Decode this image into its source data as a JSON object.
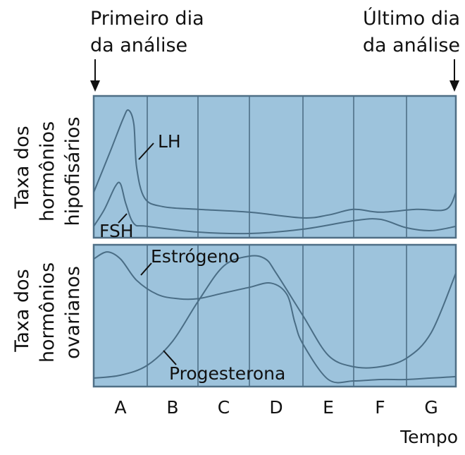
{
  "labels": {
    "first_day": [
      "Primeiro dia",
      "da análise"
    ],
    "last_day": [
      "Último dia",
      "da análise"
    ],
    "top_ylabel": [
      "Taxa dos",
      "hormônios",
      "hipofisários"
    ],
    "bottom_ylabel": [
      "Taxa dos",
      "hormônios",
      "ovarianos"
    ],
    "xlabel": "Tempo"
  },
  "chart_data": [
    {
      "type": "line",
      "title": "",
      "ylabel": "Taxa dos hormônios hipofisários",
      "xlabel": "Tempo",
      "categories": [
        "A",
        "B",
        "C",
        "D",
        "E",
        "F",
        "G"
      ],
      "series": [
        {
          "name": "LH",
          "x": [
            0,
            0.3,
            0.55,
            0.65,
            0.75,
            0.8,
            0.95,
            1.3,
            2,
            3,
            4,
            4.5,
            5,
            5.5,
            6.2,
            6.8,
            7
          ],
          "y": [
            0.32,
            0.6,
            0.84,
            0.9,
            0.8,
            0.5,
            0.28,
            0.22,
            0.2,
            0.18,
            0.14,
            0.16,
            0.2,
            0.18,
            0.2,
            0.2,
            0.32
          ]
        },
        {
          "name": "FSH",
          "x": [
            0,
            0.2,
            0.4,
            0.5,
            0.6,
            0.75,
            1,
            2,
            3,
            4,
            5,
            5.5,
            6,
            6.5,
            7
          ],
          "y": [
            0.08,
            0.2,
            0.36,
            0.38,
            0.24,
            0.1,
            0.08,
            0.04,
            0.03,
            0.06,
            0.12,
            0.13,
            0.07,
            0.05,
            0.08
          ]
        }
      ]
    },
    {
      "type": "line",
      "title": "",
      "ylabel": "Taxa dos hormônios ovarianos",
      "xlabel": "Tempo",
      "categories": [
        "A",
        "B",
        "C",
        "D",
        "E",
        "F",
        "G"
      ],
      "series": [
        {
          "name": "Estrógeno",
          "x": [
            0,
            0.25,
            0.5,
            0.8,
            1.2,
            1.6,
            2,
            2.5,
            3,
            3.4,
            3.7,
            3.85,
            4,
            4.5,
            5,
            5.5,
            6,
            6.5,
            7
          ],
          "y": [
            0.9,
            0.95,
            0.9,
            0.75,
            0.65,
            0.62,
            0.62,
            0.66,
            0.7,
            0.73,
            0.65,
            0.45,
            0.3,
            0.05,
            0.04,
            0.05,
            0.05,
            0.06,
            0.07
          ]
        },
        {
          "name": "Progesterona",
          "x": [
            0,
            0.5,
            1,
            1.5,
            2,
            2.5,
            3,
            3.3,
            3.5,
            4,
            4.5,
            5,
            5.5,
            6,
            6.5,
            7
          ],
          "y": [
            0.06,
            0.08,
            0.15,
            0.32,
            0.6,
            0.85,
            0.92,
            0.9,
            0.8,
            0.5,
            0.22,
            0.14,
            0.14,
            0.2,
            0.38,
            0.8
          ]
        }
      ]
    }
  ]
}
